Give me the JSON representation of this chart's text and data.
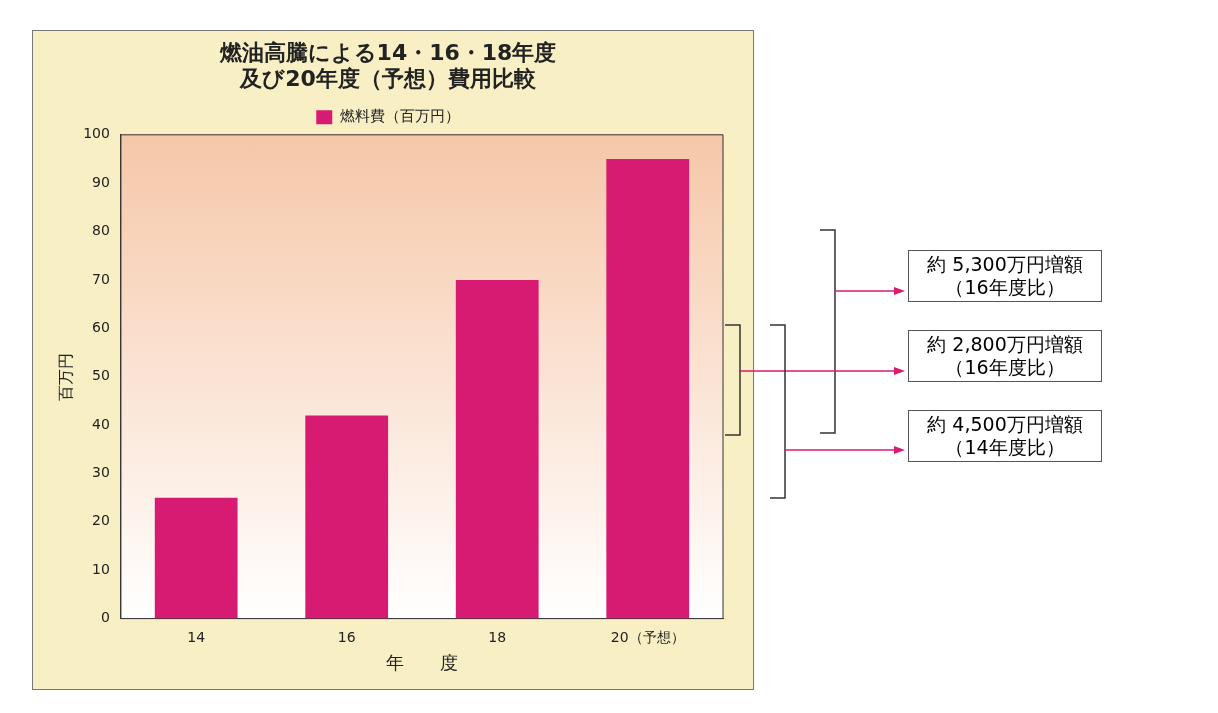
{
  "chart_data": {
    "type": "bar",
    "title": "燃油高騰による14・16・18年度及び20年度（予想）費用比較",
    "xlabel": "年　　度",
    "ylabel": "百万円",
    "categories": [
      "14",
      "16",
      "18",
      "20（予想）"
    ],
    "series": [
      {
        "name": "燃料費（百万円）",
        "color": "#d81b72",
        "values": [
          25,
          42,
          70,
          95
        ]
      }
    ],
    "ylim": [
      0,
      100
    ],
    "yticks": [
      0,
      10,
      20,
      30,
      40,
      50,
      60,
      70,
      80,
      90,
      100
    ],
    "legend": "top",
    "annotations": [
      "約 5,300万円増額（16年度比）",
      "約 2,800万円増額（16年度比）",
      "約 4,500万円増額（14年度比）"
    ]
  }
}
